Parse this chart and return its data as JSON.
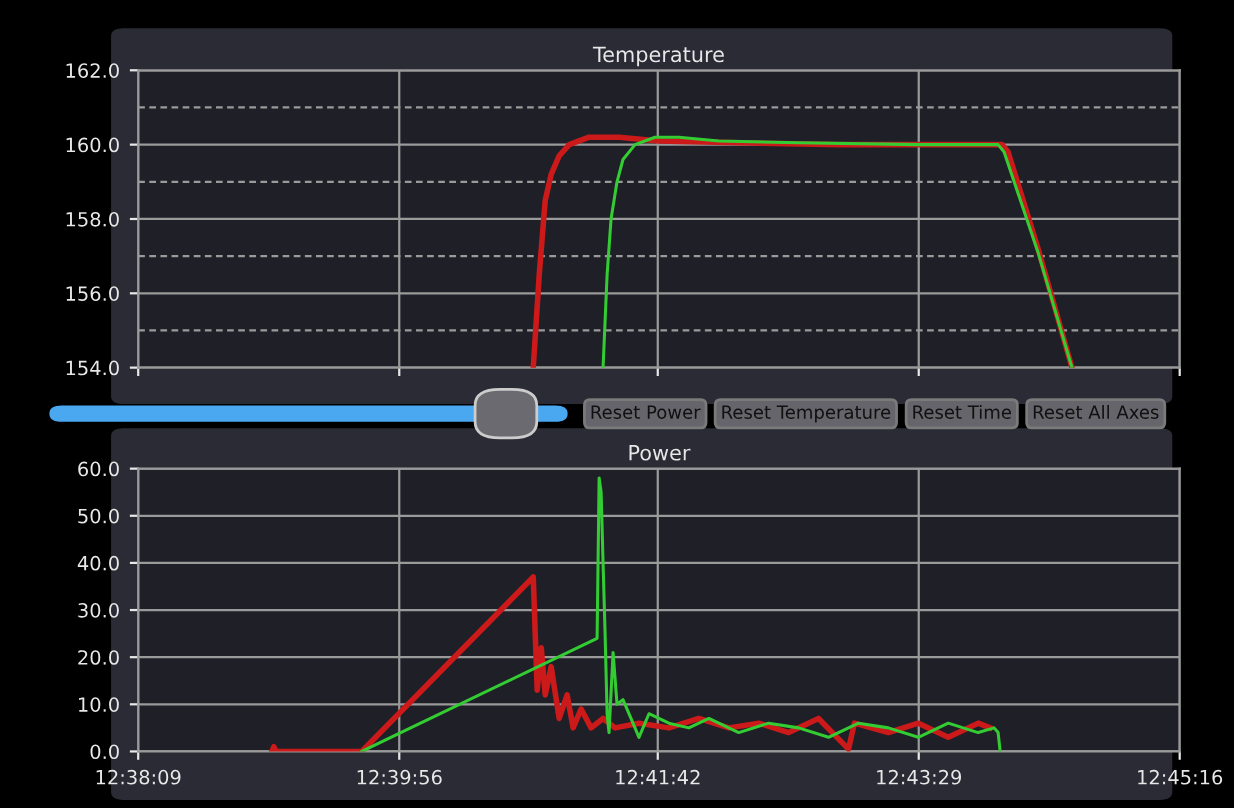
{
  "chart_data": [
    {
      "type": "line",
      "title": "Temperature",
      "xlim": [
        12.63583,
        12.75444
      ],
      "xticks": [
        {
          "value": 12.63583,
          "label": null
        },
        {
          "value": 12.66556,
          "label": null
        },
        {
          "value": 12.695,
          "label": null
        },
        {
          "value": 12.72472,
          "label": null
        },
        {
          "value": 12.75444,
          "label": null
        }
      ],
      "tick_labels": "y",
      "ylim": [
        154,
        162
      ],
      "yticks": [
        {
          "value": 154,
          "label": "154.0"
        },
        {
          "value": 155,
          "label": null
        },
        {
          "value": 156,
          "label": "156.0"
        },
        {
          "value": 157,
          "label": null
        },
        {
          "value": 158,
          "label": "158.0"
        },
        {
          "value": 159,
          "label": null
        },
        {
          "value": 160,
          "label": "160.0"
        },
        {
          "value": 161,
          "label": null
        },
        {
          "value": 162,
          "label": "162.0"
        }
      ],
      "grid": true,
      "legend": false,
      "line_style": "solid",
      "marker": "none",
      "annotations": [
        "Reset Power",
        "Reset Temperature",
        "Reset Time",
        "Reset All Axes"
      ],
      "series": [
        {
          "color": "#cc1a1a",
          "x": [
            12.68082,
            12.6815,
            12.68218,
            12.68286,
            12.68377,
            12.68491,
            12.68718,
            12.69059,
            12.69513,
            12.70422,
            12.71558,
            12.72922,
            12.73422,
            12.7349,
            12.73831,
            12.74217
          ],
          "values": [
            154.0,
            156.5,
            158.5,
            159.2,
            159.7,
            160.0,
            160.2,
            160.2,
            160.1,
            160.05,
            160.0,
            160.0,
            160.0,
            159.8,
            157.2,
            154.0
          ]
        },
        {
          "color": "#33cc33",
          "x": [
            12.68877,
            12.68923,
            12.68968,
            12.69036,
            12.69104,
            12.69241,
            12.69468,
            12.69741,
            12.70195,
            12.71104,
            12.72467,
            12.73376,
            12.73444,
            12.73831,
            12.74217
          ],
          "values": [
            154.0,
            156.5,
            158.0,
            159.0,
            159.6,
            160.0,
            160.2,
            160.2,
            160.1,
            160.05,
            160.0,
            160.0,
            159.8,
            157.1,
            154.0
          ]
        }
      ]
    },
    {
      "type": "line",
      "title": "Power",
      "xlim": [
        12.63583,
        12.75444
      ],
      "xticks": [
        {
          "value": 12.63583,
          "label": "12:38:09"
        },
        {
          "value": 12.66556,
          "label": "12:39:56"
        },
        {
          "value": 12.695,
          "label": "12:41:42"
        },
        {
          "value": 12.72472,
          "label": "12:43:29"
        },
        {
          "value": 12.75444,
          "label": "12:45:16"
        }
      ],
      "ylim": [
        0,
        60
      ],
      "yticks": [
        {
          "value": 0,
          "label": "0.0"
        },
        {
          "value": 10,
          "label": "10.0"
        },
        {
          "value": 20,
          "label": "20.0"
        },
        {
          "value": 30,
          "label": "30.0"
        },
        {
          "value": 40,
          "label": "40.0"
        },
        {
          "value": 50,
          "label": "50.0"
        },
        {
          "value": 60,
          "label": "60.0"
        }
      ],
      "grid": true,
      "legend": false,
      "line_style": "solid",
      "marker": "none",
      "series": [
        {
          "color": "#cc1a1a",
          "x": [
            12.65105,
            12.65128,
            12.65151,
            12.66128,
            12.68082,
            12.68127,
            12.68173,
            12.68218,
            12.68286,
            12.68377,
            12.68468,
            12.68536,
            12.68627,
            12.68741,
            12.68877,
            12.69014,
            12.69286,
            12.69627,
            12.69968,
            12.70309,
            12.7065,
            12.7099,
            12.71331,
            12.71672,
            12.7174,
            12.72126,
            12.72467,
            12.72808,
            12.73149,
            12.73285
          ],
          "values": [
            0,
            1.0,
            0,
            0,
            37,
            13,
            22,
            12,
            18,
            7,
            12,
            5,
            9,
            5,
            7,
            5,
            6,
            5,
            7,
            5,
            6,
            4,
            7,
            0.5,
            6,
            4,
            6,
            3,
            6,
            5
          ]
        },
        {
          "color": "#33cc33",
          "x": [
            12.66128,
            12.68809,
            12.68832,
            12.68855,
            12.68877,
            12.689,
            12.68923,
            12.68945,
            12.68991,
            12.69036,
            12.69104,
            12.69195,
            12.69286,
            12.694,
            12.69627,
            12.69854,
            12.70082,
            12.70422,
            12.70763,
            12.71104,
            12.71445,
            12.71786,
            12.72126,
            12.72467,
            12.72808,
            12.73149,
            12.73331,
            12.73376,
            12.73399
          ],
          "values": [
            0,
            24,
            58,
            55,
            40,
            25,
            8,
            4,
            21,
            10,
            11,
            7,
            3,
            8,
            6,
            5,
            7,
            4,
            6,
            5,
            3,
            6,
            5,
            3,
            6,
            4,
            5,
            4,
            0
          ]
        }
      ]
    }
  ]
}
